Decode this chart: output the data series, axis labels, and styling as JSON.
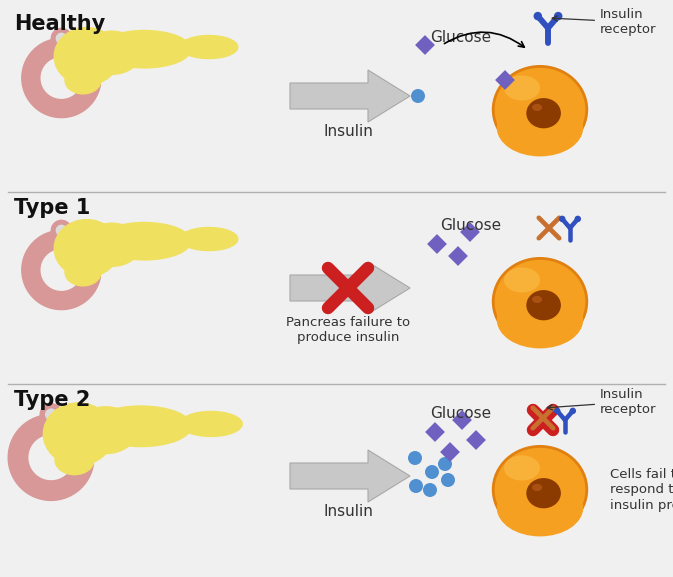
{
  "bg_color": "#dcdcdc",
  "title_fontsize": 15,
  "label_fontsize": 11,
  "small_fontsize": 9.5,
  "section_titles": [
    "Healthy",
    "Type 1",
    "Type 2"
  ],
  "arrow_body_color": "#c8c8c8",
  "arrow_edge_color": "#a8a8a8",
  "pancreas_yellow": "#f0e060",
  "pancreas_yellow2": "#e8d840",
  "duodenum_color": "#d89898",
  "duodenum_inner": "#dcdcdc",
  "cell_color": "#f5a020",
  "cell_edge": "#e08010",
  "nucleus_color": "#8b3a00",
  "glucose_color": "#7060c0",
  "insulin_dot_color": "#5090d0",
  "receptor_blue": "#3050c0",
  "receptor_orange": "#c87030",
  "receptor_red": "#cc2020",
  "text_color": "#111111",
  "annot_color": "#333333",
  "divider_color": "#b0b0b0"
}
